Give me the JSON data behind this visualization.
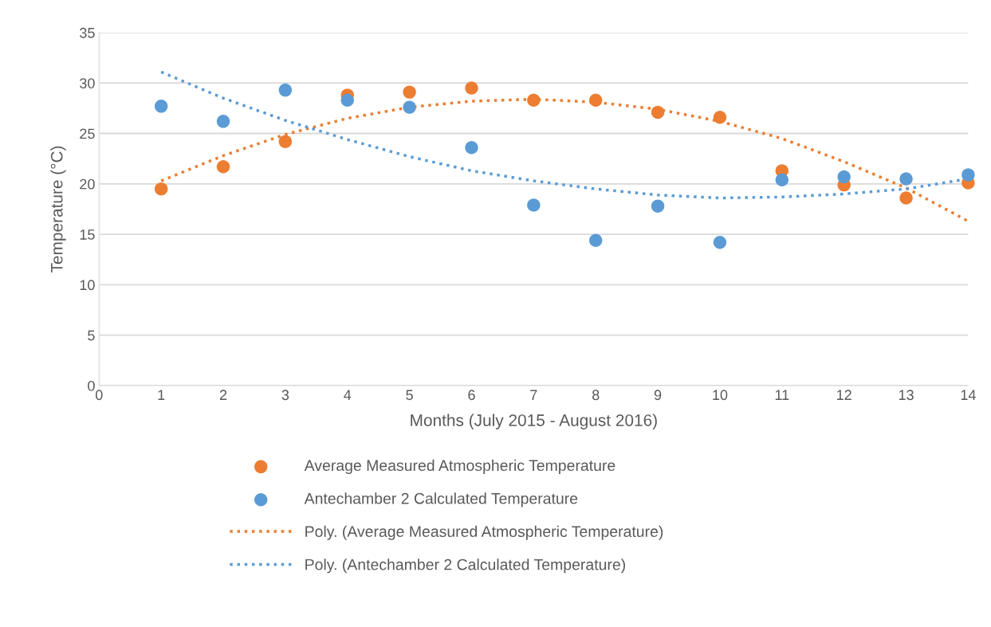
{
  "chart_data": {
    "type": "scatter",
    "xlabel": "Months (July 2015 - August 2016)",
    "ylabel": "Temperature (°C)",
    "x": [
      1,
      2,
      3,
      4,
      5,
      6,
      7,
      8,
      9,
      10,
      11,
      12,
      13,
      14
    ],
    "series": [
      {
        "name": "Average Measured Atmospheric Temperature",
        "color": "#ed7d31",
        "marker": "circle",
        "values": [
          19.5,
          21.7,
          24.2,
          28.8,
          29.1,
          29.5,
          28.3,
          28.3,
          27.1,
          26.6,
          21.3,
          19.9,
          18.6,
          20.1
        ]
      },
      {
        "name": "Antechamber 2 Calculated Temperature",
        "color": "#5b9bd5",
        "marker": "circle",
        "values": [
          27.7,
          26.2,
          29.3,
          28.3,
          27.6,
          23.6,
          17.9,
          14.4,
          17.8,
          14.2,
          20.4,
          20.7,
          20.5,
          20.9
        ]
      },
      {
        "name": "Poly. (Average Measured Atmospheric Temperature)",
        "type": "line",
        "line_style": "dotted",
        "marker": "none",
        "color": "#ed7d31",
        "x": [
          1,
          2,
          3,
          4,
          5,
          6,
          7,
          8,
          9,
          10,
          11,
          12,
          13,
          14
        ],
        "values": [
          20.3,
          22.8,
          24.9,
          26.5,
          27.6,
          28.2,
          28.4,
          28.1,
          27.4,
          26.2,
          24.5,
          22.2,
          19.6,
          16.3
        ]
      },
      {
        "name": "Poly. (Antechamber 2 Calculated Temperature)",
        "type": "line",
        "line_style": "dotted",
        "marker": "none",
        "color": "#5b9bd5",
        "x": [
          1,
          2,
          3,
          4,
          5,
          6,
          7,
          8,
          9,
          10,
          11,
          12,
          13,
          14
        ],
        "values": [
          31.1,
          28.5,
          26.3,
          24.4,
          22.7,
          21.3,
          20.3,
          19.5,
          18.9,
          18.6,
          18.7,
          19.0,
          19.5,
          20.5
        ]
      }
    ],
    "xlim": [
      0,
      14
    ],
    "xticks": [
      0,
      1,
      2,
      3,
      4,
      5,
      6,
      7,
      8,
      9,
      10,
      11,
      12,
      13,
      14
    ],
    "ylim": [
      0,
      35
    ],
    "yticks": [
      0,
      5,
      10,
      15,
      20,
      25,
      30,
      35
    ],
    "grid": "y",
    "legend": "bottom"
  }
}
